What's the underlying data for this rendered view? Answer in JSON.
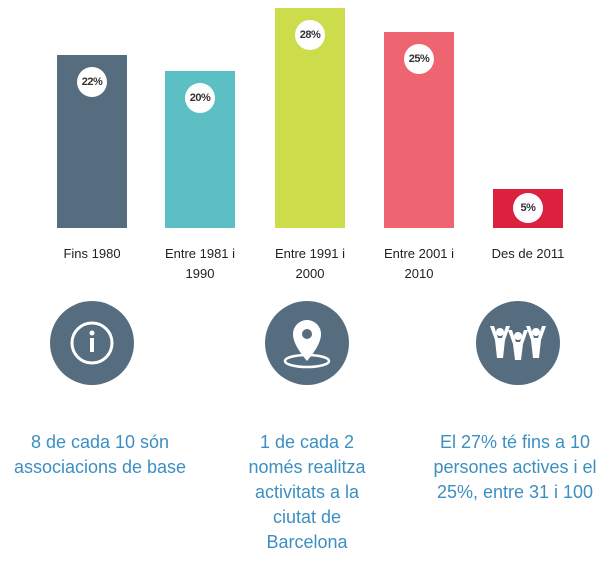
{
  "chart_data": {
    "type": "bar",
    "categories": [
      "Fins 1980",
      "Entre 1981 i 1990",
      "Entre 1991 i 2000",
      "Entre 2001 i 2010",
      "Des de 2011"
    ],
    "values": [
      22,
      20,
      28,
      25,
      5
    ],
    "value_labels": [
      "22%",
      "20%",
      "28%",
      "25%",
      "5%"
    ],
    "colors": [
      "#566d80",
      "#5bbfc4",
      "#cddc4a",
      "#ee6470",
      "#dc2040"
    ]
  },
  "facts": [
    {
      "text": "8 de cada 10 són associacions de base"
    },
    {
      "text": "1 de cada 2 només realitza activitats a la ciutat de Barcelona"
    },
    {
      "text": "El 27% té fins a 10 persones actives i el 25%, entre 31 i 100"
    }
  ]
}
